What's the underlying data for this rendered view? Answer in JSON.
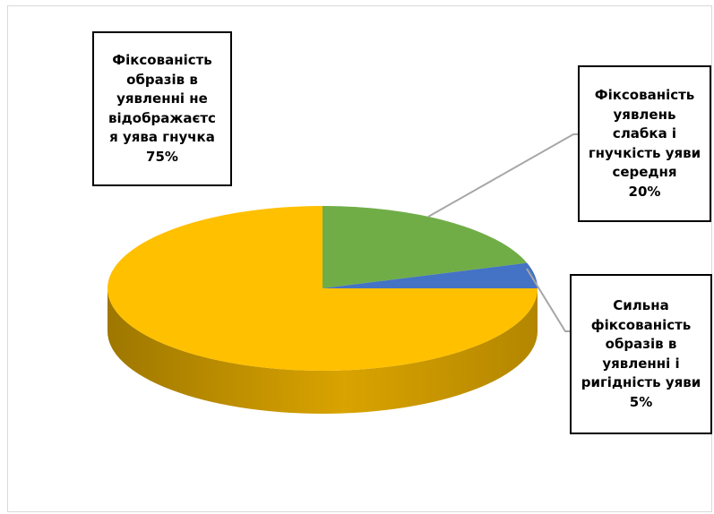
{
  "chart_data": {
    "type": "pie",
    "style": "3d",
    "slices": [
      {
        "label": "Фіксованість образів в уявленні не відображаєтсья уява гнучка",
        "label_lines": [
          "Фіксованість",
          "образів в",
          "уявленні не",
          "відображаєтс",
          "я уява гнучка"
        ],
        "value": 75,
        "value_label": "75%",
        "color": "#FFC000"
      },
      {
        "label": "Фіксованість уявлень слабка і гнучкість уяви середня",
        "label_lines": [
          "Фіксованість",
          "уявлень",
          "слабка і",
          "гнучкість уяви",
          "середня"
        ],
        "value": 20,
        "value_label": "20%",
        "color": "#70AD47"
      },
      {
        "label": "Сильна фіксованість образів в уявленні і ригідність уяви",
        "label_lines": [
          "Сильна",
          "фіксованість",
          "образів в",
          "уявленні і",
          "ригідність уяви"
        ],
        "value": 5,
        "value_label": "5%",
        "color": "#4472C4"
      }
    ]
  }
}
